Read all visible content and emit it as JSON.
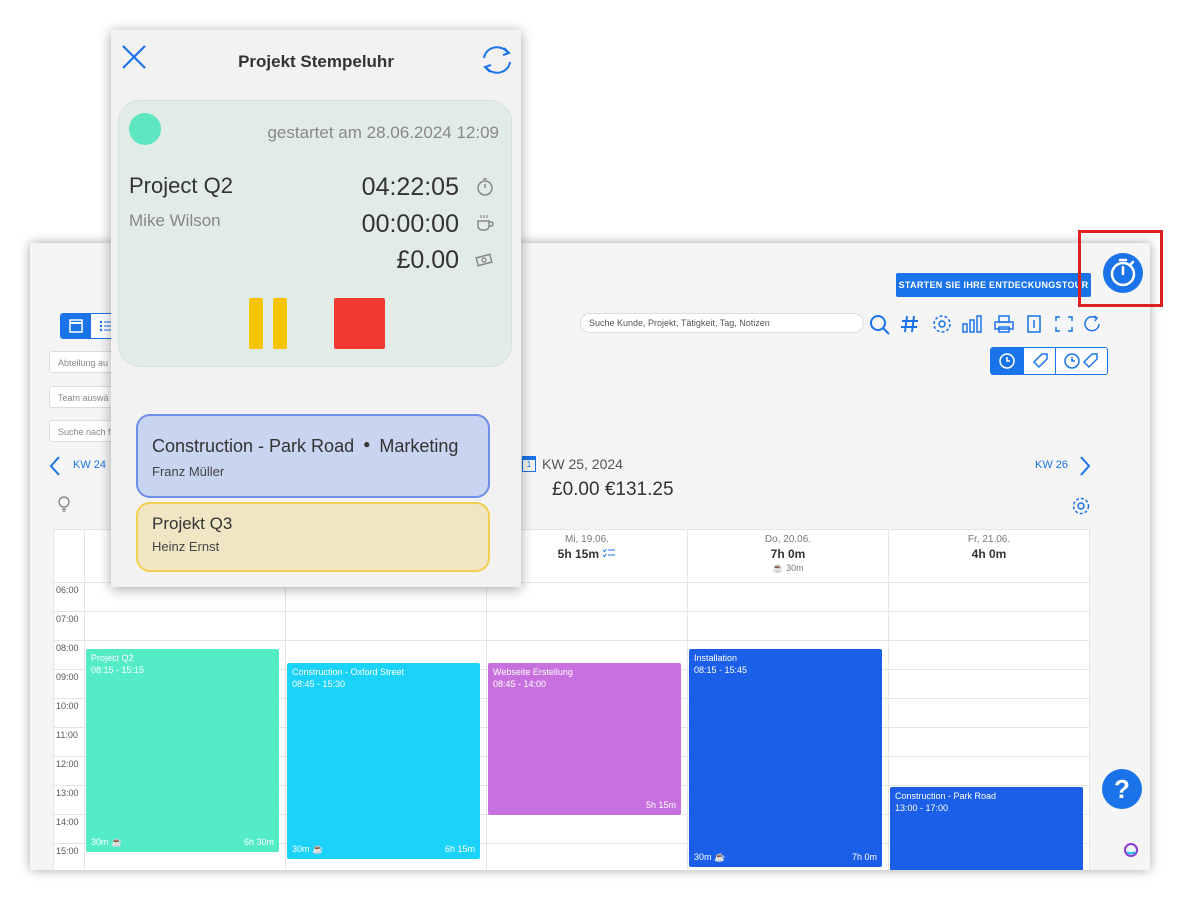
{
  "app": {
    "tour_button": "STARTEN SIE IHRE ENTDECKUNGSTOUR",
    "search_placeholder": "Suche Kunde, Projekt, Tätigkeit, Tag, Notizen",
    "filters": {
      "department": "Abteilung au",
      "team": "Team auswä",
      "search": "Suche nach f"
    },
    "week_nav": {
      "prev": "KW 24",
      "next": "KW 26"
    },
    "week_title": "KW 25, 2024",
    "week_totals": "£0.00  €131.25",
    "calendar_icon_day": "1",
    "days": [
      {
        "label": "",
        "hours": "",
        "break": ""
      },
      {
        "label": "",
        "hours": "",
        "break": ""
      },
      {
        "label": "Mi, 19.06.",
        "hours": "5h 15m",
        "break": ""
      },
      {
        "label": "Do, 20.06.",
        "hours": "7h 0m",
        "break": "30m"
      },
      {
        "label": "Fr, 21.06.",
        "hours": "4h 0m",
        "break": ""
      }
    ],
    "hours": [
      "06:00",
      "07:00",
      "08:00",
      "09:00",
      "10:00",
      "11:00",
      "12:00",
      "13:00",
      "14:00",
      "15:00"
    ],
    "events": [
      {
        "title": "Project Q2",
        "time": "08:15 - 15:15",
        "break": "30m",
        "duration": "6h 30m",
        "color": "#53ecc6"
      },
      {
        "title": "Construction - Oxford Street",
        "time": "08:45 - 15:30",
        "break": "30m",
        "duration": "6h 15m",
        "color": "#1bd2f8"
      },
      {
        "title": "Webseite Erstellung",
        "time": "08:45 - 14:00",
        "break": "",
        "duration": "5h 15m",
        "color": "#c770de"
      },
      {
        "title": "Installation",
        "time": "08:15 - 15:45",
        "break": "30m",
        "duration": "7h 0m",
        "color": "#1b5fe8"
      },
      {
        "title": "Construction - Park Road",
        "time": "13:00 - 17:00",
        "break": "",
        "duration": "",
        "color": "#1b5fe8"
      }
    ],
    "help_label": "?"
  },
  "popup": {
    "title": "Projekt Stempeluhr",
    "started": "gestartet am 28.06.2024 12:09",
    "project": "Project Q2",
    "user": "Mike Wilson",
    "worked_time": "04:22:05",
    "break_time": "00:00:00",
    "amount": "£0.00",
    "recent": [
      {
        "project": "Construction - Park Road",
        "activity": "Marketing",
        "user": "Franz Müller"
      },
      {
        "project": "Projekt Q3",
        "user": "Heinz Ernst"
      }
    ]
  },
  "colors": {
    "accent": "#1a73e8",
    "highlight": "#e02020",
    "pause": "#f8c400",
    "stop": "#f23a32"
  }
}
